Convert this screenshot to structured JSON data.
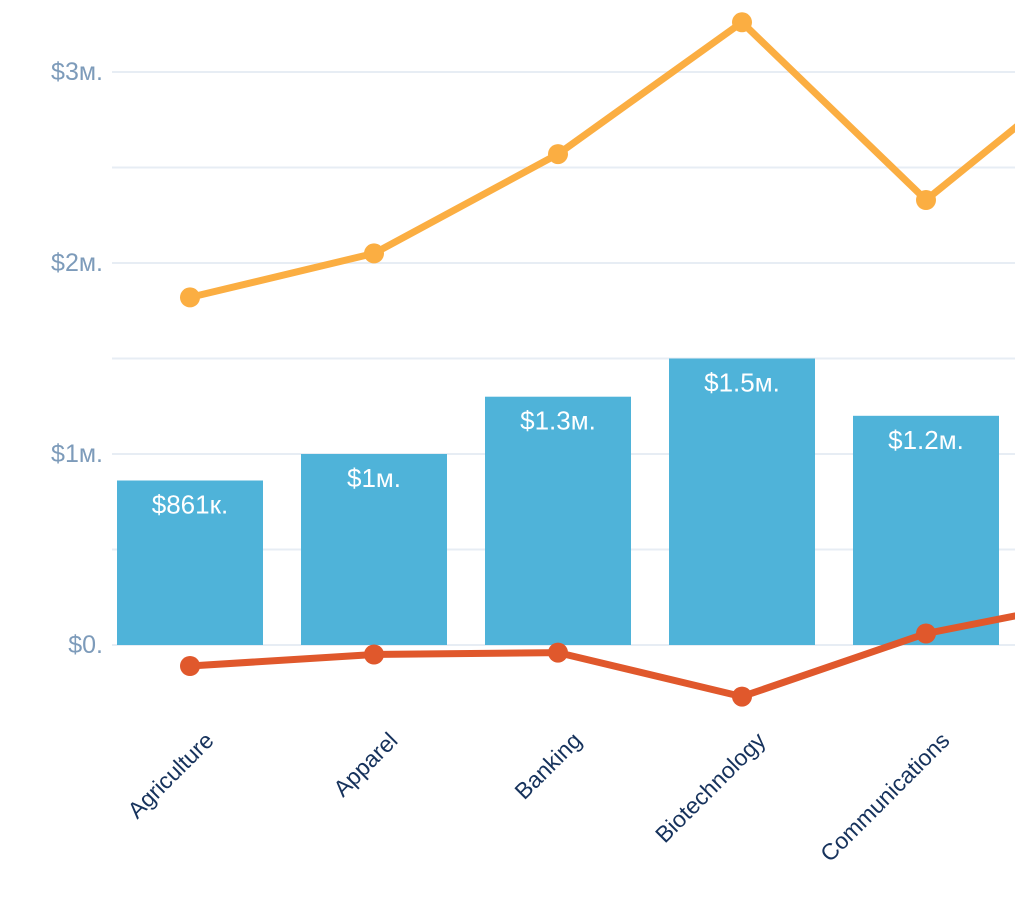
{
  "chart_data": {
    "type": "combo",
    "subtype": "bar+line",
    "categories": [
      "Agriculture",
      "Apparel",
      "Banking",
      "Biotechnology",
      "Communications"
    ],
    "bar_series": {
      "values": [
        861000,
        1000000,
        1300000,
        1500000,
        1200000
      ],
      "labels": [
        "$861к.",
        "$1м.",
        "$1.3м.",
        "$1.5м.",
        "$1.2м."
      ],
      "color": "#4fb3d9",
      "label_color": "#ffffff"
    },
    "line_series": [
      {
        "id": "upper_line",
        "values": [
          1820000,
          2050000,
          2570000,
          3260000,
          2330000
        ],
        "edge_value": 3110000,
        "continues_right": true,
        "color": "#fbae42"
      },
      {
        "id": "lower_line",
        "values": [
          -110000,
          -50000,
          -40000,
          -270000,
          60000
        ],
        "edge_value": 250000,
        "continues_right": true,
        "color": "#e0582c"
      }
    ],
    "y_axis": {
      "tick_labels": [
        "$3м.",
        "$2м.",
        "$1м.",
        "$0."
      ],
      "tick_values": [
        3000000,
        2000000,
        1000000,
        0
      ],
      "gridline_values": [
        3000000,
        2500000,
        2000000,
        1500000,
        1000000,
        500000,
        0
      ],
      "label_color": "#7d9bba",
      "gridline_color": "#e7edf4"
    },
    "x_axis": {
      "label_color": "#16325c",
      "label_rotation_deg": -45
    },
    "layout_hints": {
      "grid": "horizontal-only",
      "legend": "none",
      "value_axis_range_visible": [
        -400000,
        3380000
      ]
    }
  }
}
